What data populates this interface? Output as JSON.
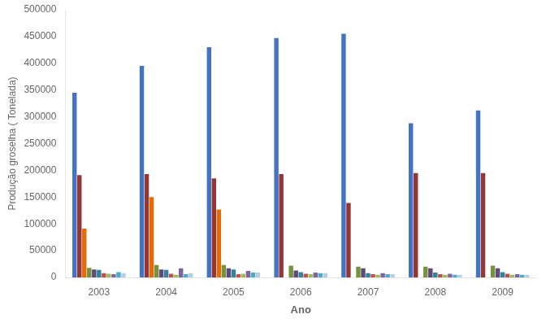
{
  "chart_data": {
    "type": "bar",
    "xlabel": "Ano",
    "ylabel": "Produção groselha ( Tonelada)",
    "categories": [
      "2003",
      "2004",
      "2005",
      "2006",
      "2007",
      "2008",
      "2009"
    ],
    "series": [
      {
        "color": "#4472C4",
        "values": [
          345000,
          395000,
          430000,
          447000,
          455000,
          288000,
          312000
        ]
      },
      {
        "color": "#943634",
        "values": [
          191000,
          193000,
          185000,
          193000,
          139000,
          195000,
          195000
        ]
      },
      {
        "color": "#E36C09",
        "values": [
          91000,
          150000,
          127000,
          0,
          0,
          0,
          0
        ]
      },
      {
        "color": "#76923C",
        "values": [
          18000,
          23000,
          23000,
          22000,
          20000,
          20000,
          22000
        ]
      },
      {
        "color": "#604A7B",
        "values": [
          15000,
          15000,
          17000,
          13000,
          17000,
          17000,
          17000
        ]
      },
      {
        "color": "#31849B",
        "values": [
          14000,
          14000,
          15000,
          10000,
          8000,
          9000,
          10000
        ]
      },
      {
        "color": "#C0504D",
        "values": [
          8000,
          7000,
          6000,
          7000,
          6000,
          6000,
          7000
        ]
      },
      {
        "color": "#9BBB59",
        "values": [
          7000,
          5000,
          7000,
          6000,
          5000,
          5000,
          5000
        ]
      },
      {
        "color": "#8064A2",
        "values": [
          6000,
          17000,
          12000,
          9000,
          8000,
          7000,
          6000
        ]
      },
      {
        "color": "#4BACC6",
        "values": [
          10000,
          6000,
          9000,
          8000,
          6000,
          5000,
          5000
        ]
      },
      {
        "color": "#B8CCE4",
        "values": [
          8000,
          8000,
          9000,
          8000,
          6000,
          5000,
          5000
        ]
      }
    ],
    "ylim": [
      0,
      500000
    ],
    "yticks": [
      0,
      50000,
      100000,
      150000,
      200000,
      250000,
      300000,
      350000,
      400000,
      450000,
      500000
    ],
    "grid": false
  }
}
